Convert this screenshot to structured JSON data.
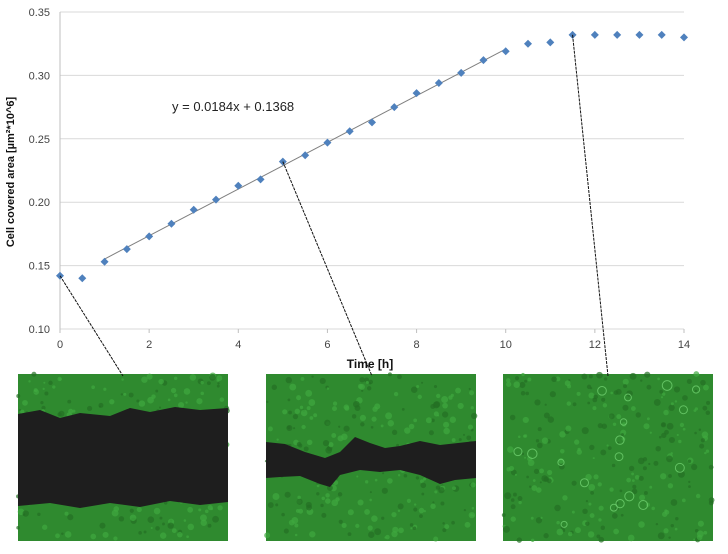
{
  "chart_data": {
    "type": "scatter",
    "xlabel": "Time [h]",
    "ylabel": "Cell covered area [µm²*10^6]",
    "xlim": [
      0,
      14
    ],
    "ylim": [
      0.1,
      0.35
    ],
    "x_ticks": [
      "0",
      "2",
      "4",
      "6",
      "8",
      "10",
      "12",
      "14"
    ],
    "y_ticks": [
      "0.10",
      "0.15",
      "0.20",
      "0.25",
      "0.30",
      "0.35"
    ],
    "grid": "horizontal",
    "marker_color": "#4f81bd",
    "series": [
      {
        "x": [
          0,
          0.5,
          1,
          1.5,
          2,
          2.5,
          3,
          3.5,
          4,
          4.5,
          5,
          5.5,
          6,
          6.5,
          7,
          7.5,
          8,
          8.5,
          9,
          9.5,
          10,
          10.5,
          11,
          11.5,
          12,
          12.5,
          13,
          13.5,
          14
        ],
        "y": [
          0.142,
          0.14,
          0.153,
          0.163,
          0.173,
          0.183,
          0.194,
          0.202,
          0.213,
          0.218,
          0.232,
          0.237,
          0.247,
          0.256,
          0.263,
          0.275,
          0.286,
          0.294,
          0.302,
          0.312,
          0.319,
          0.325,
          0.326,
          0.332,
          0.332,
          0.332,
          0.332,
          0.332,
          0.33
        ]
      }
    ],
    "trendline": {
      "slope": 0.0184,
      "intercept": 0.1368,
      "x_range": [
        1,
        10
      ],
      "equation": "y = 0.0184x + 0.1368"
    },
    "image_panels": [
      {
        "time": 0,
        "wound_state": "open gap"
      },
      {
        "time": 5,
        "wound_state": "narrow gap"
      },
      {
        "time": 11.5,
        "wound_state": "closed"
      }
    ]
  }
}
